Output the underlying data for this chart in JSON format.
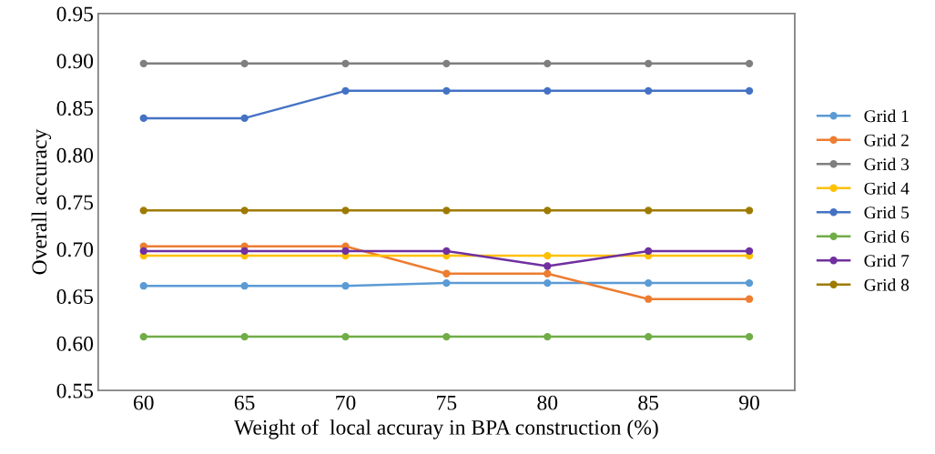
{
  "chart_data": {
    "type": "line",
    "xlabel": "Weight of  local accuray in BPA construction (%)",
    "ylabel": "Overall accuracy",
    "categories": [
      "60",
      "65",
      "70",
      "75",
      "80",
      "85",
      "90"
    ],
    "ylim": [
      0.55,
      0.95
    ],
    "yticks": [
      {
        "value": 0.55,
        "label": "0.55"
      },
      {
        "value": 0.6,
        "label": "0.60"
      },
      {
        "value": 0.65,
        "label": "0.65"
      },
      {
        "value": 0.7,
        "label": "0.70"
      },
      {
        "value": 0.75,
        "label": "0.75"
      },
      {
        "value": 0.8,
        "label": "0.80"
      },
      {
        "value": 0.85,
        "label": "0.85"
      },
      {
        "value": 0.9,
        "label": "0.90"
      },
      {
        "value": 0.95,
        "label": "0.95"
      }
    ],
    "grid": false,
    "legend": "right",
    "marker": "circle",
    "line_style": "solid",
    "series": [
      {
        "name": "Grid 1",
        "color": "#5b9bd5",
        "values": [
          0.661,
          0.661,
          0.661,
          0.664,
          0.664,
          0.664,
          0.664
        ]
      },
      {
        "name": "Grid 2",
        "color": "#ed7d31",
        "values": [
          0.703,
          0.703,
          0.703,
          0.674,
          0.674,
          0.647,
          0.647
        ]
      },
      {
        "name": "Grid 3",
        "color": "#7f7f7f",
        "values": [
          0.897,
          0.897,
          0.897,
          0.897,
          0.897,
          0.897,
          0.897
        ]
      },
      {
        "name": "Grid 4",
        "color": "#ffc000",
        "values": [
          0.693,
          0.693,
          0.693,
          0.693,
          0.693,
          0.693,
          0.693
        ]
      },
      {
        "name": "Grid 5",
        "color": "#4472c4",
        "values": [
          0.839,
          0.839,
          0.868,
          0.868,
          0.868,
          0.868,
          0.868
        ]
      },
      {
        "name": "Grid 6",
        "color": "#70ad47",
        "values": [
          0.607,
          0.607,
          0.607,
          0.607,
          0.607,
          0.607,
          0.607
        ]
      },
      {
        "name": "Grid 7",
        "color": "#7030a0",
        "values": [
          0.698,
          0.698,
          0.698,
          0.698,
          0.682,
          0.698,
          0.698
        ]
      },
      {
        "name": "Grid 8",
        "color": "#9e7a00",
        "values": [
          0.741,
          0.741,
          0.741,
          0.741,
          0.741,
          0.741,
          0.741
        ]
      }
    ]
  }
}
